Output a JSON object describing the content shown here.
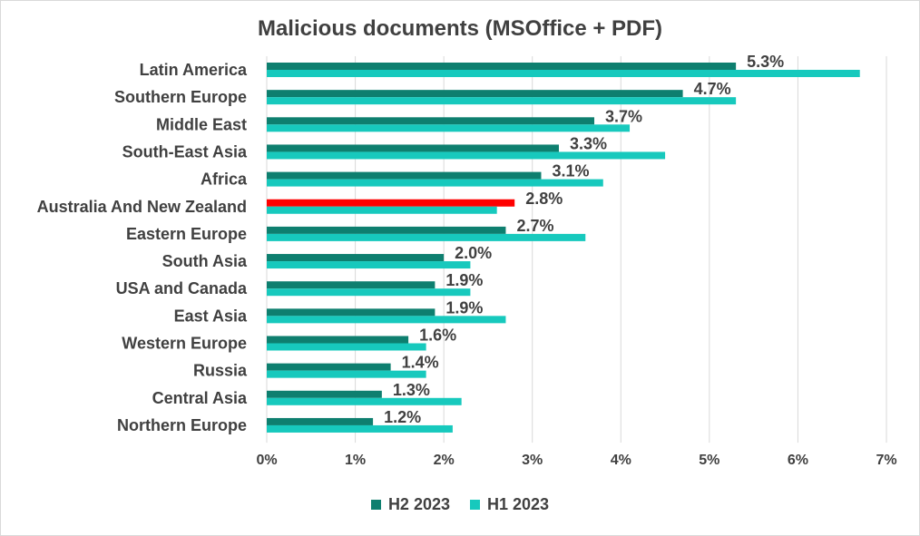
{
  "colors": {
    "h2": "#0e7f6f",
    "h1": "#17c9bd",
    "highlight": "#ff0000",
    "grid": "#d9d9d9",
    "text": "#404040"
  },
  "chart_data": {
    "type": "bar",
    "orientation": "horizontal",
    "title": "Malicious documents (MSOffice + PDF)",
    "categories": [
      "Latin America",
      "Southern Europe",
      "Middle East",
      "South-East Asia",
      "Africa",
      "Australia And New Zealand",
      "Eastern Europe",
      "South Asia",
      "USA and Canada",
      "East Asia",
      "Western Europe",
      "Russia",
      "Central Asia",
      "Northern Europe"
    ],
    "series": [
      {
        "name": "H2 2023",
        "values": [
          5.3,
          4.7,
          3.7,
          3.3,
          3.1,
          2.8,
          2.7,
          2.0,
          1.9,
          1.9,
          1.6,
          1.4,
          1.3,
          1.2
        ]
      },
      {
        "name": "H1 2023",
        "values": [
          6.7,
          5.3,
          4.1,
          4.5,
          3.8,
          2.6,
          3.6,
          2.3,
          2.3,
          2.7,
          1.8,
          1.8,
          2.2,
          2.1
        ]
      }
    ],
    "data_labels": [
      "5.3%",
      "4.7%",
      "3.7%",
      "3.3%",
      "3.1%",
      "2.8%",
      "2.7%",
      "2.0%",
      "1.9%",
      "1.9%",
      "1.6%",
      "1.4%",
      "1.3%",
      "1.2%"
    ],
    "highlighted_category": "Australia And New Zealand",
    "xlim": [
      0,
      7
    ],
    "xticks": [
      "0%",
      "1%",
      "2%",
      "3%",
      "4%",
      "5%",
      "6%",
      "7%"
    ],
    "grid": true,
    "legend_position": "bottom"
  }
}
